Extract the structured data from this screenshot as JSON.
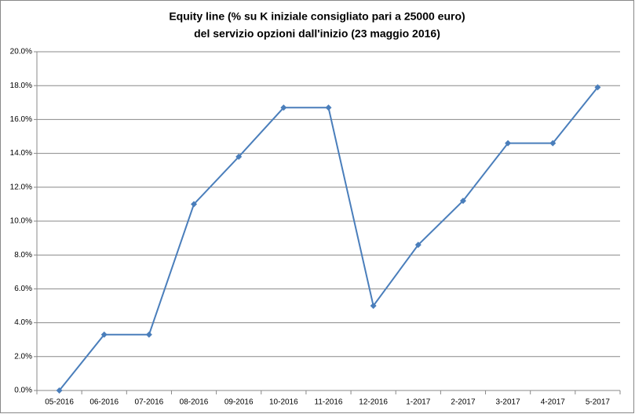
{
  "chart_data": {
    "type": "line",
    "title": "Equity line (% su K iniziale consigliato pari a 25000 euro)",
    "subtitle": "del servizio opzioni dall'inizio (23 maggio 2016)",
    "categories": [
      "05-2016",
      "06-2016",
      "07-2016",
      "08-2016",
      "09-2016",
      "10-2016",
      "11-2016",
      "12-2016",
      "1-2017",
      "2-2017",
      "3-2017",
      "4-2017",
      "5-2017"
    ],
    "values": [
      0,
      3.3,
      3.3,
      11.0,
      13.8,
      16.7,
      16.7,
      5.0,
      8.6,
      11.2,
      14.6,
      14.6,
      17.9
    ],
    "color": "#4a7ebb",
    "ylim": [
      0,
      20
    ],
    "yticks": [
      {
        "value": 0,
        "label": "0.0%"
      },
      {
        "value": 2,
        "label": "2.0%"
      },
      {
        "value": 4,
        "label": "4.0%"
      },
      {
        "value": 6,
        "label": "6.0%"
      },
      {
        "value": 8,
        "label": "8.0%"
      },
      {
        "value": 10,
        "label": "10.0%"
      },
      {
        "value": 12,
        "label": "12.0%"
      },
      {
        "value": 14,
        "label": "14.0%"
      },
      {
        "value": 16,
        "label": "16.0%"
      },
      {
        "value": 18,
        "label": "18.0%"
      },
      {
        "value": 20,
        "label": "20.0%"
      }
    ],
    "grid": true
  }
}
